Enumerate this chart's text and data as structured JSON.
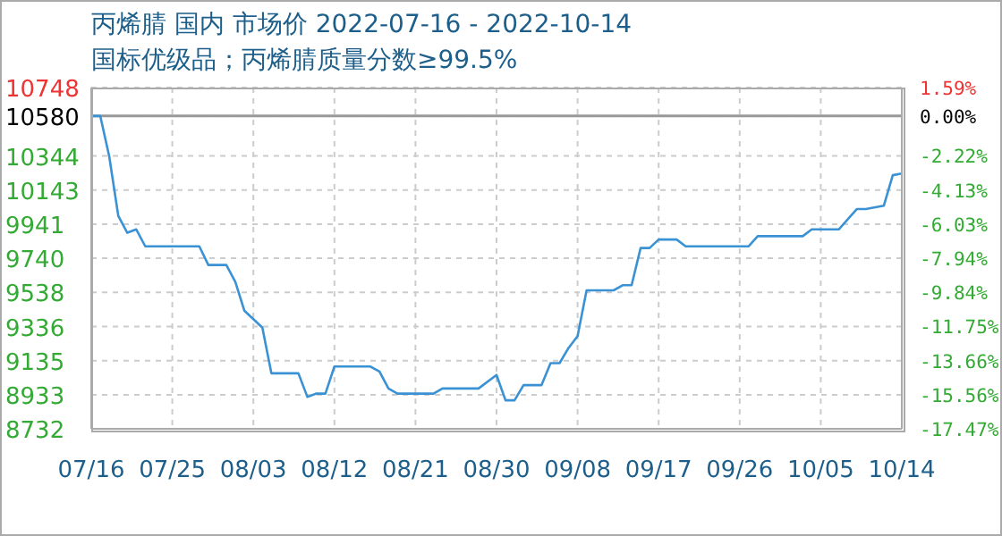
{
  "chart_data": {
    "type": "line",
    "title": "丙烯腈 国内 市场价 2022-07-16 - 2022-10-14",
    "subtitle": "国标优级品；丙烯腈质量分数≥99.5%",
    "x": [
      "2022-07-16",
      "2022-07-17",
      "2022-07-18",
      "2022-07-19",
      "2022-07-20",
      "2022-07-21",
      "2022-07-22",
      "2022-07-28",
      "2022-07-29",
      "2022-07-31",
      "2022-08-01",
      "2022-08-02",
      "2022-08-03",
      "2022-08-04",
      "2022-08-05",
      "2022-08-08",
      "2022-08-09",
      "2022-08-10",
      "2022-08-11",
      "2022-08-12",
      "2022-08-16",
      "2022-08-17",
      "2022-08-18",
      "2022-08-19",
      "2022-08-23",
      "2022-08-24",
      "2022-08-28",
      "2022-08-30",
      "2022-08-31",
      "2022-09-01",
      "2022-09-02",
      "2022-09-04",
      "2022-09-05",
      "2022-09-06",
      "2022-09-07",
      "2022-09-08",
      "2022-09-09",
      "2022-09-12",
      "2022-09-13",
      "2022-09-14",
      "2022-09-15",
      "2022-09-16",
      "2022-09-17",
      "2022-09-19",
      "2022-09-20",
      "2022-09-27",
      "2022-09-28",
      "2022-10-03",
      "2022-10-04",
      "2022-10-07",
      "2022-10-09",
      "2022-10-10",
      "2022-10-12",
      "2022-10-13",
      "2022-10-14"
    ],
    "series": [
      {
        "color": "#3a92d4",
        "values": [
          10580,
          10580,
          10340,
          9990,
          9890,
          9910,
          9810,
          9810,
          9700,
          9700,
          9600,
          9430,
          9380,
          9330,
          9060,
          9060,
          8920,
          8940,
          8940,
          9100,
          9100,
          9070,
          8970,
          8940,
          8940,
          8970,
          8970,
          9050,
          8900,
          8900,
          8990,
          8990,
          9120,
          9120,
          9210,
          9280,
          9550,
          9550,
          9580,
          9580,
          9800,
          9800,
          9850,
          9850,
          9810,
          9810,
          9870,
          9870,
          9910,
          9910,
          10030,
          10030,
          10050,
          10230,
          10240
        ]
      }
    ],
    "xlim": [
      "2022-07-16",
      "2022-10-14"
    ],
    "xticks": [
      {
        "value": "2022-07-16",
        "label": "07/16"
      },
      {
        "value": "2022-07-25",
        "label": "07/25"
      },
      {
        "value": "2022-08-03",
        "label": "08/03"
      },
      {
        "value": "2022-08-12",
        "label": "08/12"
      },
      {
        "value": "2022-08-21",
        "label": "08/21"
      },
      {
        "value": "2022-08-30",
        "label": "08/30"
      },
      {
        "value": "2022-09-08",
        "label": "09/08"
      },
      {
        "value": "2022-09-17",
        "label": "09/17"
      },
      {
        "value": "2022-09-26",
        "label": "09/26"
      },
      {
        "value": "2022-10-05",
        "label": "10/05"
      },
      {
        "value": "2022-10-14",
        "label": "10/14"
      }
    ],
    "ylim": [
      8732,
      10748
    ],
    "yticks": [
      8732,
      8933,
      9135,
      9336,
      9538,
      9740,
      9941,
      10143,
      10344,
      10580,
      10748
    ],
    "y2lim": [
      -17.47,
      1.59
    ],
    "y2ticks": [
      {
        "value": -17.47,
        "label": "-17.47%"
      },
      {
        "value": -15.56,
        "label": "-15.56%"
      },
      {
        "value": -13.66,
        "label": "-13.66%"
      },
      {
        "value": -11.75,
        "label": "-11.75%"
      },
      {
        "value": -9.84,
        "label": "-9.84%"
      },
      {
        "value": -7.94,
        "label": "-7.94%"
      },
      {
        "value": -6.03,
        "label": "-6.03%"
      },
      {
        "value": -4.13,
        "label": "-4.13%"
      },
      {
        "value": -2.22,
        "label": "-2.22%"
      },
      {
        "value": 0,
        "label": "0.00%"
      },
      {
        "value": 1.59,
        "label": "1.59%"
      }
    ],
    "ref_lines": [
      {
        "axis": "y",
        "value": 10580,
        "color": "#999999"
      }
    ],
    "grid": true,
    "marker": "none",
    "line_style": "solid"
  }
}
